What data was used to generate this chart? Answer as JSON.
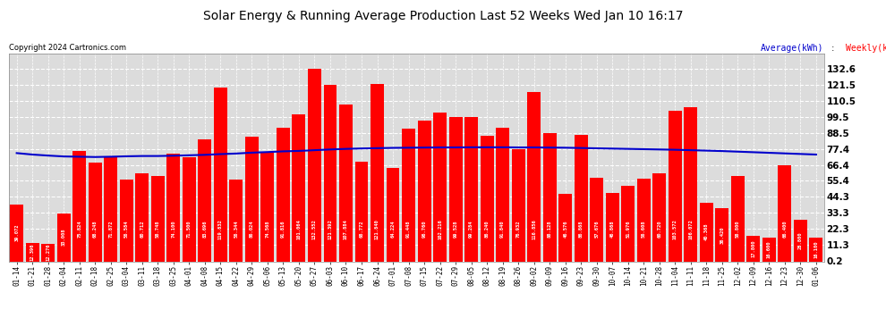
{
  "title": "Solar Energy & Running Average Production Last 52 Weeks Wed Jan 10 16:17",
  "copyright": "Copyright 2024 Cartronics.com",
  "legend_avg": "Average(kWh)",
  "legend_weekly": "Weekly(kWh)",
  "bar_color": "#FF0000",
  "avg_line_color": "#0000CC",
  "background_color": "#FFFFFF",
  "plot_bg_color": "#DCDCDC",
  "grid_color": "#FFFFFF",
  "yticks": [
    0.2,
    11.3,
    22.3,
    33.3,
    44.3,
    55.4,
    66.4,
    77.4,
    88.5,
    99.5,
    110.5,
    121.5,
    132.6
  ],
  "ylim": [
    0,
    143
  ],
  "categories": [
    "01-14",
    "01-21",
    "01-28",
    "02-04",
    "02-11",
    "02-18",
    "02-25",
    "03-04",
    "03-11",
    "03-18",
    "03-25",
    "04-01",
    "04-08",
    "04-15",
    "04-22",
    "04-29",
    "05-06",
    "05-13",
    "05-20",
    "05-27",
    "06-03",
    "06-10",
    "06-17",
    "06-24",
    "07-01",
    "07-08",
    "07-15",
    "07-22",
    "07-29",
    "08-05",
    "08-12",
    "08-19",
    "08-26",
    "09-02",
    "09-09",
    "09-16",
    "09-23",
    "09-30",
    "10-07",
    "10-14",
    "10-21",
    "10-28",
    "11-04",
    "11-11",
    "11-18",
    "11-25",
    "12-02",
    "12-09",
    "12-16",
    "12-23",
    "12-30",
    "01-06"
  ],
  "weekly_values": [
    39.072,
    12.396,
    12.276,
    33.008,
    75.824,
    68.248,
    71.872,
    56.584,
    60.712,
    58.748,
    74.1,
    71.5,
    83.696,
    119.832,
    56.344,
    86.024,
    74.568,
    91.816,
    101.064,
    132.552,
    121.392,
    107.884,
    68.772,
    121.84,
    64.224,
    91.448,
    96.76,
    102.216,
    99.528,
    99.284,
    86.24,
    91.84,
    76.932,
    116.856,
    88.128,
    46.576,
    86.868,
    57.676,
    46.868,
    51.976,
    56.608,
    60.72,
    103.572,
    106.072,
    40.368,
    36.42,
    58.8,
    17.8,
    16.6,
    66.4,
    28.8,
    16.1
  ],
  "avg_values": [
    74.5,
    73.5,
    72.8,
    72.2,
    72.0,
    71.8,
    72.0,
    72.3,
    72.5,
    72.5,
    72.7,
    73.0,
    73.3,
    73.8,
    74.2,
    74.8,
    75.2,
    75.7,
    76.0,
    76.5,
    77.0,
    77.4,
    77.7,
    77.9,
    78.1,
    78.2,
    78.3,
    78.4,
    78.4,
    78.5,
    78.5,
    78.5,
    78.4,
    78.4,
    78.3,
    78.2,
    78.0,
    77.8,
    77.6,
    77.4,
    77.2,
    77.0,
    76.8,
    76.5,
    76.2,
    75.9,
    75.5,
    75.1,
    74.7,
    74.3,
    73.9,
    73.5
  ]
}
